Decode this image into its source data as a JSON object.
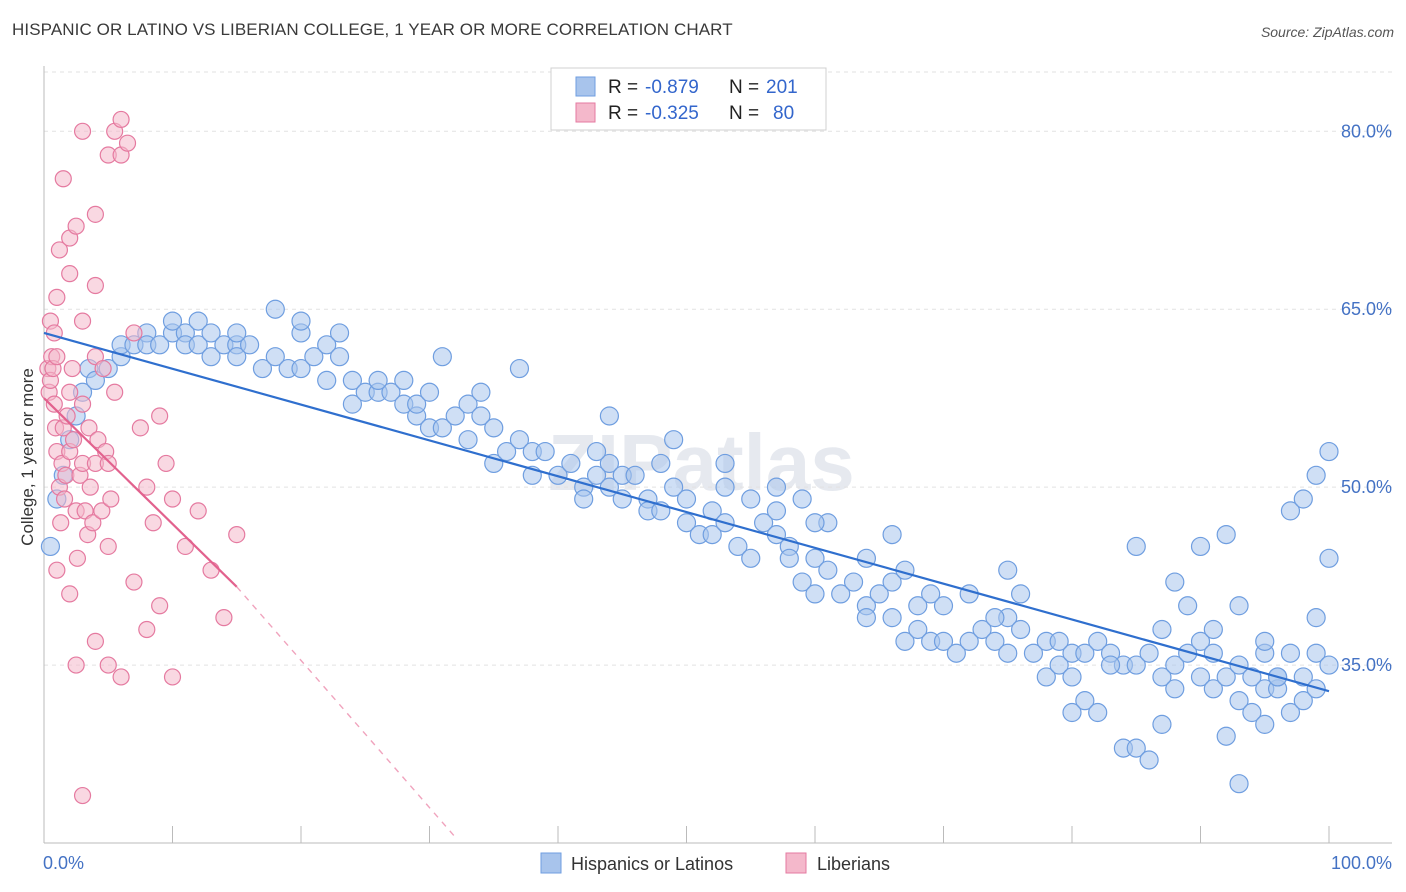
{
  "title": "HISPANIC OR LATINO VS LIBERIAN COLLEGE, 1 YEAR OR MORE CORRELATION CHART",
  "source": "Source: ZipAtlas.com",
  "watermark": "ZIPatlas",
  "chart_data": {
    "type": "scatter",
    "title": "HISPANIC OR LATINO VS LIBERIAN COLLEGE, 1 YEAR OR MORE CORRELATION CHART",
    "xlabel": "",
    "ylabel": "College, 1 year or more",
    "xlim": [
      0,
      100
    ],
    "ylim": [
      20,
      85
    ],
    "x_tick_labels": [
      "0.0%",
      "100.0%"
    ],
    "y_ticks": [
      35,
      50,
      65,
      80
    ],
    "y_tick_labels": [
      "35.0%",
      "50.0%",
      "65.0%",
      "80.0%"
    ],
    "legend": {
      "entries": [
        {
          "r_label": "R =",
          "r": "-0.879",
          "n_label": "N =",
          "n": "201",
          "color": "#a8c4ec"
        },
        {
          "r_label": "R =",
          "r": "-0.325",
          "n_label": "N =",
          "n": "80",
          "color": "#f4b8cb"
        }
      ]
    },
    "bottom_legend": [
      "Hispanics or Latinos",
      "Liberians"
    ],
    "series": [
      {
        "name": "Hispanics or Latinos",
        "color": "#6f9ee0",
        "fill": "#a8c4ec",
        "trend": {
          "x0": 0,
          "y0": 63.0,
          "x1": 100,
          "y1": 32.8
        },
        "points": [
          [
            0.5,
            45
          ],
          [
            1,
            49
          ],
          [
            1.5,
            51
          ],
          [
            2,
            54
          ],
          [
            2.5,
            56
          ],
          [
            3,
            58
          ],
          [
            3.5,
            60
          ],
          [
            4,
            59
          ],
          [
            5,
            60
          ],
          [
            6,
            61
          ],
          [
            6,
            62
          ],
          [
            7,
            62
          ],
          [
            8,
            63
          ],
          [
            8,
            62
          ],
          [
            9,
            62
          ],
          [
            10,
            63
          ],
          [
            11,
            63
          ],
          [
            11,
            62
          ],
          [
            12,
            64
          ],
          [
            12,
            62
          ],
          [
            13,
            63
          ],
          [
            13,
            61
          ],
          [
            14,
            62
          ],
          [
            15,
            62
          ],
          [
            15,
            61
          ],
          [
            16,
            62
          ],
          [
            17,
            60
          ],
          [
            18,
            65
          ],
          [
            18,
            61
          ],
          [
            19,
            60
          ],
          [
            20,
            63
          ],
          [
            20,
            60
          ],
          [
            21,
            61
          ],
          [
            22,
            59
          ],
          [
            22,
            62
          ],
          [
            23,
            63
          ],
          [
            23,
            61
          ],
          [
            24,
            57
          ],
          [
            24,
            59
          ],
          [
            25,
            58
          ],
          [
            26,
            58
          ],
          [
            27,
            58
          ],
          [
            28,
            57
          ],
          [
            28,
            59
          ],
          [
            29,
            56
          ],
          [
            29,
            57
          ],
          [
            30,
            55
          ],
          [
            30,
            58
          ],
          [
            31,
            55
          ],
          [
            32,
            56
          ],
          [
            33,
            54
          ],
          [
            33,
            57
          ],
          [
            34,
            58
          ],
          [
            34,
            56
          ],
          [
            35,
            52
          ],
          [
            35,
            55
          ],
          [
            36,
            53
          ],
          [
            37,
            54
          ],
          [
            38,
            53
          ],
          [
            38,
            51
          ],
          [
            39,
            53
          ],
          [
            40,
            51
          ],
          [
            41,
            52
          ],
          [
            42,
            50
          ],
          [
            42,
            49
          ],
          [
            43,
            51
          ],
          [
            44,
            52
          ],
          [
            44,
            50
          ],
          [
            45,
            49
          ],
          [
            45,
            51
          ],
          [
            46,
            51
          ],
          [
            47,
            49
          ],
          [
            47,
            48
          ],
          [
            48,
            52
          ],
          [
            48,
            48
          ],
          [
            49,
            50
          ],
          [
            50,
            47
          ],
          [
            50,
            49
          ],
          [
            51,
            46
          ],
          [
            52,
            46
          ],
          [
            52,
            48
          ],
          [
            53,
            47
          ],
          [
            53,
            50
          ],
          [
            54,
            45
          ],
          [
            55,
            44
          ],
          [
            55,
            49
          ],
          [
            56,
            47
          ],
          [
            57,
            46
          ],
          [
            57,
            48
          ],
          [
            58,
            45
          ],
          [
            58,
            44
          ],
          [
            59,
            42
          ],
          [
            59,
            49
          ],
          [
            60,
            41
          ],
          [
            60,
            44
          ],
          [
            61,
            43
          ],
          [
            61,
            47
          ],
          [
            62,
            41
          ],
          [
            63,
            42
          ],
          [
            64,
            40
          ],
          [
            64,
            39
          ],
          [
            65,
            41
          ],
          [
            66,
            42
          ],
          [
            66,
            39
          ],
          [
            67,
            37
          ],
          [
            67,
            43
          ],
          [
            68,
            38
          ],
          [
            68,
            40
          ],
          [
            69,
            37
          ],
          [
            70,
            40
          ],
          [
            70,
            37
          ],
          [
            71,
            36
          ],
          [
            72,
            37
          ],
          [
            72,
            41
          ],
          [
            73,
            38
          ],
          [
            74,
            37
          ],
          [
            75,
            36
          ],
          [
            75,
            39
          ],
          [
            76,
            38
          ],
          [
            76,
            41
          ],
          [
            77,
            36
          ],
          [
            78,
            34
          ],
          [
            78,
            37
          ],
          [
            79,
            35
          ],
          [
            80,
            36
          ],
          [
            80,
            34
          ],
          [
            81,
            32
          ],
          [
            81,
            36
          ],
          [
            82,
            31
          ],
          [
            82,
            37
          ],
          [
            83,
            36
          ],
          [
            84,
            28
          ],
          [
            84,
            35
          ],
          [
            85,
            28
          ],
          [
            85,
            35
          ],
          [
            86,
            36
          ],
          [
            87,
            38
          ],
          [
            87,
            34
          ],
          [
            88,
            33
          ],
          [
            88,
            35
          ],
          [
            89,
            36
          ],
          [
            89,
            40
          ],
          [
            90,
            37
          ],
          [
            90,
            34
          ],
          [
            91,
            33
          ],
          [
            91,
            36
          ],
          [
            92,
            29
          ],
          [
            92,
            34
          ],
          [
            93,
            35
          ],
          [
            93,
            32
          ],
          [
            94,
            34
          ],
          [
            94,
            31
          ],
          [
            95,
            33
          ],
          [
            95,
            36
          ],
          [
            96,
            33
          ],
          [
            96,
            34
          ],
          [
            97,
            31
          ],
          [
            97,
            36
          ],
          [
            98,
            32
          ],
          [
            98,
            34
          ],
          [
            99,
            33
          ],
          [
            99,
            36
          ],
          [
            100,
            35
          ],
          [
            66,
            46
          ],
          [
            75,
            43
          ],
          [
            85,
            45
          ],
          [
            88,
            42
          ],
          [
            90,
            45
          ],
          [
            92,
            46
          ],
          [
            93,
            40
          ],
          [
            95,
            30
          ],
          [
            97,
            48
          ],
          [
            98,
            49
          ],
          [
            99,
            51
          ],
          [
            100,
            53
          ],
          [
            100,
            44
          ],
          [
            49,
            54
          ],
          [
            44,
            56
          ],
          [
            37,
            60
          ],
          [
            31,
            61
          ],
          [
            26,
            59
          ],
          [
            20,
            64
          ],
          [
            15,
            63
          ],
          [
            10,
            64
          ],
          [
            43,
            53
          ],
          [
            53,
            52
          ],
          [
            57,
            50
          ],
          [
            60,
            47
          ],
          [
            64,
            44
          ],
          [
            69,
            41
          ],
          [
            74,
            39
          ],
          [
            79,
            37
          ],
          [
            83,
            35
          ],
          [
            86,
            27
          ],
          [
            93,
            25
          ],
          [
            96,
            34
          ],
          [
            99,
            39
          ],
          [
            95,
            37
          ],
          [
            91,
            38
          ],
          [
            87,
            30
          ],
          [
            80,
            31
          ]
        ]
      },
      {
        "name": "Liberians",
        "color": "#e57aa0",
        "fill": "#f4b8cb",
        "trend": {
          "x0": 0,
          "y0": 57.5,
          "x1": 15,
          "y1": 41.6
        },
        "trend_dashed": {
          "x0": 15,
          "y0": 41.6,
          "x1": 32,
          "y1": 20.5
        },
        "points": [
          [
            0.3,
            60
          ],
          [
            0.4,
            58
          ],
          [
            0.5,
            59
          ],
          [
            0.6,
            61
          ],
          [
            0.7,
            60
          ],
          [
            0.8,
            57
          ],
          [
            0.9,
            55
          ],
          [
            1,
            53
          ],
          [
            1,
            61
          ],
          [
            1.2,
            50
          ],
          [
            1.3,
            47
          ],
          [
            1.4,
            52
          ],
          [
            1.5,
            55
          ],
          [
            1.6,
            49
          ],
          [
            1.7,
            51
          ],
          [
            1.8,
            56
          ],
          [
            2,
            53
          ],
          [
            2,
            58
          ],
          [
            2.2,
            60
          ],
          [
            2.3,
            54
          ],
          [
            2.5,
            48
          ],
          [
            2.6,
            44
          ],
          [
            2.8,
            51
          ],
          [
            3,
            52
          ],
          [
            3,
            57
          ],
          [
            3.2,
            48
          ],
          [
            3.4,
            46
          ],
          [
            3.5,
            55
          ],
          [
            3.6,
            50
          ],
          [
            3.8,
            47
          ],
          [
            4,
            52
          ],
          [
            4,
            61
          ],
          [
            4.2,
            54
          ],
          [
            4.5,
            48
          ],
          [
            4.6,
            60
          ],
          [
            4.8,
            53
          ],
          [
            5,
            45
          ],
          [
            5,
            52
          ],
          [
            5.2,
            49
          ],
          [
            5.5,
            58
          ],
          [
            0.5,
            64
          ],
          [
            1,
            66
          ],
          [
            1.2,
            70
          ],
          [
            2,
            71
          ],
          [
            2.5,
            72
          ],
          [
            3,
            64
          ],
          [
            4,
            73
          ],
          [
            5,
            78
          ],
          [
            5.5,
            80
          ],
          [
            6,
            78
          ],
          [
            1.5,
            76
          ],
          [
            3,
            80
          ],
          [
            6,
            81
          ],
          [
            6.5,
            79
          ],
          [
            2,
            68
          ],
          [
            4,
            67
          ],
          [
            7,
            63
          ],
          [
            7.5,
            55
          ],
          [
            8,
            50
          ],
          [
            8.5,
            47
          ],
          [
            9,
            56
          ],
          [
            9.5,
            52
          ],
          [
            10,
            49
          ],
          [
            11,
            45
          ],
          [
            12,
            48
          ],
          [
            13,
            43
          ],
          [
            14,
            39
          ],
          [
            15,
            46
          ],
          [
            8,
            38
          ],
          [
            9,
            40
          ],
          [
            10,
            34
          ],
          [
            2.5,
            35
          ],
          [
            5,
            35
          ],
          [
            6,
            34
          ],
          [
            3,
            24
          ],
          [
            4,
            37
          ],
          [
            7,
            42
          ],
          [
            1,
            43
          ],
          [
            2,
            41
          ],
          [
            0.8,
            63
          ]
        ]
      }
    ]
  }
}
